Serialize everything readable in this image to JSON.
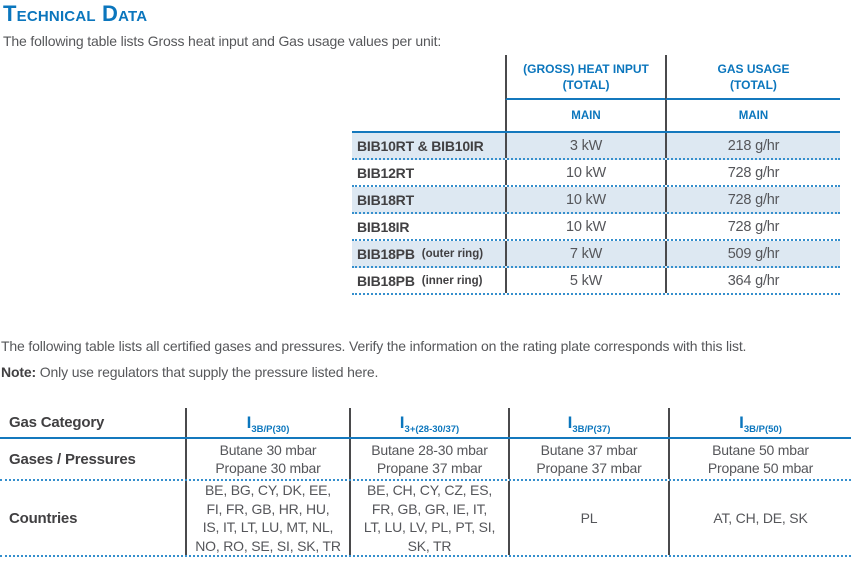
{
  "title": "Technical Data",
  "intro": "The following table lists Gross heat input and Gas usage values per unit:",
  "certified_text": "The following table lists all certified gases and pressures. Verify the information on the rating plate corresponds with this list.",
  "note": {
    "label": "Note:",
    "text": " Only use regulators that supply the pressure listed here."
  },
  "heat_table": {
    "headers": {
      "heat_input": "(GROSS) HEAT INPUT\n(TOTAL)",
      "gas_usage": "GAS USAGE\n(TOTAL)",
      "heat_sub": "MAIN",
      "gas_sub": "MAIN"
    },
    "rows": [
      {
        "model": "BIB10RT & BIB10IR",
        "note": "",
        "heat_input": "3 kW",
        "gas_usage": "218 g/hr"
      },
      {
        "model": "BIB12RT",
        "note": "",
        "heat_input": "10 kW",
        "gas_usage": "728 g/hr"
      },
      {
        "model": "BIB18RT",
        "note": "",
        "heat_input": "10 kW",
        "gas_usage": "728 g/hr"
      },
      {
        "model": "BIB18IR",
        "note": "",
        "heat_input": "10 kW",
        "gas_usage": "728 g/hr"
      },
      {
        "model": "BIB18PB",
        "note": "(outer ring)",
        "heat_input": "7 kW",
        "gas_usage": "509 g/hr"
      },
      {
        "model": "BIB18PB",
        "note": "(inner ring)",
        "heat_input": "5 kW",
        "gas_usage": "364 g/hr"
      }
    ]
  },
  "gas_table": {
    "labels": {
      "category": "Gas Category",
      "pressures": "Gases / Pressures",
      "countries": "Countries"
    },
    "columns": [
      {
        "symbol": "I",
        "subscript": "3B/P(30)",
        "pressures": "Butane 30 mbar\nPropane 30 mbar",
        "countries": "BE, BG, CY, DK, EE,\nFI, FR, GB, HR, HU,\nIS, IT, LT, LU, MT, NL,\nNO, RO, SE, SI, SK, TR"
      },
      {
        "symbol": "I",
        "subscript": "3+(28-30/37)",
        "pressures": "Butane 28-30 mbar\nPropane 37 mbar",
        "countries": "BE, CH, CY, CZ, ES,\nFR, GB, GR, IE, IT,\nLT, LU, LV, PL, PT, SI,\nSK, TR"
      },
      {
        "symbol": "I",
        "subscript": "3B/P(37)",
        "pressures": "Butane 37 mbar\nPropane 37 mbar",
        "countries": "PL"
      },
      {
        "symbol": "I",
        "subscript": "3B/P(50)",
        "pressures": "Butane 50 mbar\nPropane 50 mbar",
        "countries": "AT, CH, DE, SK"
      }
    ]
  },
  "colors": {
    "accent_blue": "#0b76bd",
    "rule_blue": "#1478bd",
    "dotted_blue": "#358fcd",
    "row_shade": "#dde8f2",
    "dark_text": "#414042",
    "body_text": "#55565a",
    "divider_dark": "#4a4a4c"
  }
}
